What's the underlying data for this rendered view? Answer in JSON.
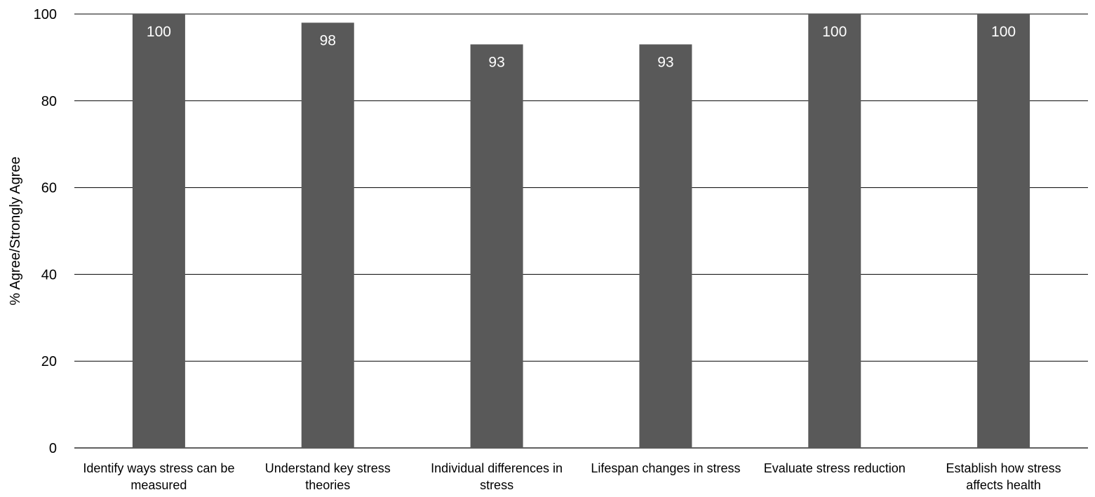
{
  "chart_data": {
    "type": "bar",
    "title": "",
    "xlabel": "",
    "ylabel": "% Agree/Strongly Agree",
    "ylim": [
      0,
      100
    ],
    "yticks": [
      0,
      20,
      40,
      60,
      80,
      100
    ],
    "grid": true,
    "legend": "none",
    "bar_color": "#595959",
    "data_label_color": "#ffffff",
    "categories": [
      [
        "Identify ways stress can be",
        "measured"
      ],
      [
        "Understand key stress",
        "theories"
      ],
      [
        "Individual differences in",
        "stress"
      ],
      [
        "Lifespan changes in stress"
      ],
      [
        "Evaluate stress reduction"
      ],
      [
        "Establish how stress",
        "affects health"
      ]
    ],
    "values": [
      100,
      98,
      93,
      93,
      100,
      100
    ]
  }
}
